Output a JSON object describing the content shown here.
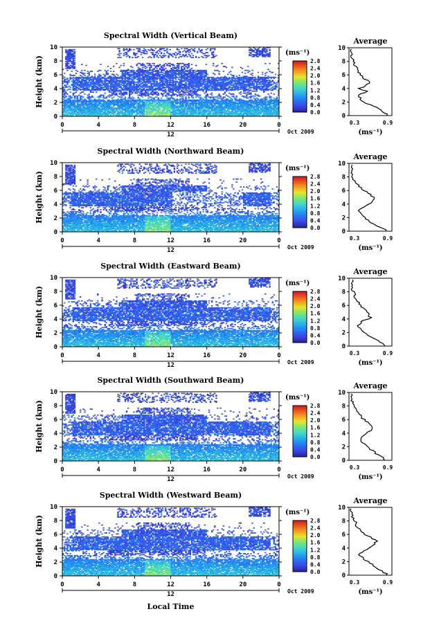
{
  "figure": {
    "x_axis_label": "Local Time",
    "unit_label": "(ms⁻¹)",
    "average_title": "Average",
    "date_label": "Oct 2009",
    "midpoint_label": "12"
  },
  "chart_data": [
    {
      "type": "heatmap",
      "title": "Spectral Width (Vertical Beam)",
      "xlabel": "",
      "ylabel": "Height (km)",
      "xlim": [
        0,
        24
      ],
      "ylim": [
        0,
        10
      ],
      "xticks": [
        "0",
        "4",
        "8",
        "12",
        "16",
        "20",
        "0"
      ],
      "yticks": [
        "0",
        "2",
        "4",
        "6",
        "8",
        "10"
      ],
      "colorbar": {
        "label": "(ms⁻¹)",
        "ticks": [
          "0.0",
          "0.4",
          "0.8",
          "1.2",
          "1.6",
          "2.0",
          "2.4",
          "2.8"
        ],
        "range": [
          0,
          2.8
        ]
      },
      "profile": {
        "title": "Average",
        "xlim": [
          0.3,
          0.9
        ],
        "xticks": [
          "0.3",
          "0.9"
        ],
        "xlabel": "(ms⁻¹)",
        "heights": [
          0.2,
          1,
          2,
          3,
          3.6,
          4,
          4.5,
          5,
          5.5,
          6,
          7,
          8,
          8.8,
          9.6
        ],
        "values": [
          0.83,
          0.72,
          0.5,
          0.43,
          0.55,
          0.45,
          0.55,
          0.6,
          0.5,
          0.47,
          0.4,
          0.36,
          0.34,
          0.33
        ]
      }
    },
    {
      "type": "heatmap",
      "title": "Spectral Width (Northward Beam)",
      "xlabel": "",
      "ylabel": "Height (km)",
      "xlim": [
        0,
        24
      ],
      "ylim": [
        0,
        10
      ],
      "xticks": [
        "0",
        "4",
        "8",
        "12",
        "16",
        "20",
        "0"
      ],
      "yticks": [
        "0",
        "2",
        "4",
        "6",
        "8",
        "10"
      ],
      "colorbar": {
        "label": "(ms⁻¹)",
        "ticks": [
          "0.0",
          "0.4",
          "0.8",
          "1.2",
          "1.6",
          "2.0",
          "2.4",
          "2.8"
        ],
        "range": [
          0,
          2.8
        ]
      },
      "profile": {
        "title": "Average",
        "xlim": [
          0.3,
          0.9
        ],
        "xticks": [
          "0.3",
          "0.9"
        ],
        "xlabel": "(ms⁻¹)",
        "heights": [
          0.2,
          1,
          2,
          3,
          3.6,
          4.2,
          4.8,
          5.5,
          6.2,
          7,
          8,
          8.8,
          9.6
        ],
        "values": [
          0.82,
          0.65,
          0.52,
          0.45,
          0.5,
          0.62,
          0.66,
          0.58,
          0.48,
          0.4,
          0.35,
          0.33,
          0.34
        ]
      }
    },
    {
      "type": "heatmap",
      "title": "Spectral Width (Eastward Beam)",
      "xlabel": "",
      "ylabel": "Height (km)",
      "xlim": [
        0,
        24
      ],
      "ylim": [
        0,
        10
      ],
      "xticks": [
        "0",
        "4",
        "8",
        "12",
        "16",
        "20",
        "0"
      ],
      "yticks": [
        "0",
        "2",
        "4",
        "6",
        "8",
        "10"
      ],
      "colorbar": {
        "label": "(ms⁻¹)",
        "ticks": [
          "0.0",
          "0.4",
          "0.8",
          "1.2",
          "1.6",
          "2.0",
          "2.4",
          "2.8"
        ],
        "range": [
          0,
          2.8
        ]
      },
      "profile": {
        "title": "Average",
        "xlim": [
          0.3,
          0.9
        ],
        "xticks": [
          "0.3",
          "0.9"
        ],
        "xlabel": "(ms⁻¹)",
        "heights": [
          0.2,
          1,
          2,
          3,
          3.6,
          4.2,
          5,
          5.6,
          6.2,
          7,
          8,
          8.8,
          9.6
        ],
        "values": [
          0.8,
          0.66,
          0.5,
          0.42,
          0.48,
          0.6,
          0.55,
          0.5,
          0.45,
          0.4,
          0.36,
          0.34,
          0.35
        ]
      }
    },
    {
      "type": "heatmap",
      "title": "Spectral Width (Southward Beam)",
      "xlabel": "",
      "ylabel": "Height (km)",
      "xlim": [
        0,
        24
      ],
      "ylim": [
        0,
        10
      ],
      "xticks": [
        "0",
        "4",
        "8",
        "12",
        "16",
        "20",
        "0"
      ],
      "yticks": [
        "0",
        "2",
        "4",
        "6",
        "8",
        "10"
      ],
      "colorbar": {
        "label": "(ms⁻¹)",
        "ticks": [
          "0.0",
          "0.4",
          "0.8",
          "1.2",
          "1.6",
          "2.0",
          "2.4",
          "2.8"
        ],
        "range": [
          0,
          2.8
        ]
      },
      "profile": {
        "title": "Average",
        "xlim": [
          0.3,
          0.9
        ],
        "xticks": [
          "0.3",
          "0.9"
        ],
        "xlabel": "(ms⁻¹)",
        "heights": [
          0.2,
          1,
          2,
          3,
          3.6,
          4.4,
          5,
          5.6,
          6.3,
          7,
          8,
          8.8,
          9.6
        ],
        "values": [
          0.8,
          0.68,
          0.55,
          0.45,
          0.5,
          0.6,
          0.63,
          0.56,
          0.48,
          0.42,
          0.37,
          0.34,
          0.33
        ]
      }
    },
    {
      "type": "heatmap",
      "title": "Spectral Width (Westward Beam)",
      "xlabel": "Local Time",
      "ylabel": "Height (km)",
      "xlim": [
        0,
        24
      ],
      "ylim": [
        0,
        10
      ],
      "xticks": [
        "0",
        "4",
        "8",
        "12",
        "16",
        "20",
        "0"
      ],
      "yticks": [
        "0",
        "2",
        "4",
        "6",
        "8",
        "10"
      ],
      "colorbar": {
        "label": "(ms⁻¹)",
        "ticks": [
          "0.0",
          "0.4",
          "0.8",
          "1.2",
          "1.6",
          "2.0",
          "2.4",
          "2.8"
        ],
        "range": [
          0,
          2.8
        ]
      },
      "profile": {
        "title": "Average",
        "xlim": [
          0.3,
          0.9
        ],
        "xticks": [
          "0.3",
          "0.9"
        ],
        "xlabel": "(ms⁻¹)",
        "heights": [
          0.2,
          1,
          2,
          3,
          3.6,
          4.3,
          5,
          5.6,
          6.3,
          7,
          8,
          8.8,
          9.6
        ],
        "values": [
          0.82,
          0.7,
          0.56,
          0.44,
          0.5,
          0.62,
          0.68,
          0.6,
          0.48,
          0.42,
          0.38,
          0.34,
          0.33
        ]
      }
    }
  ]
}
